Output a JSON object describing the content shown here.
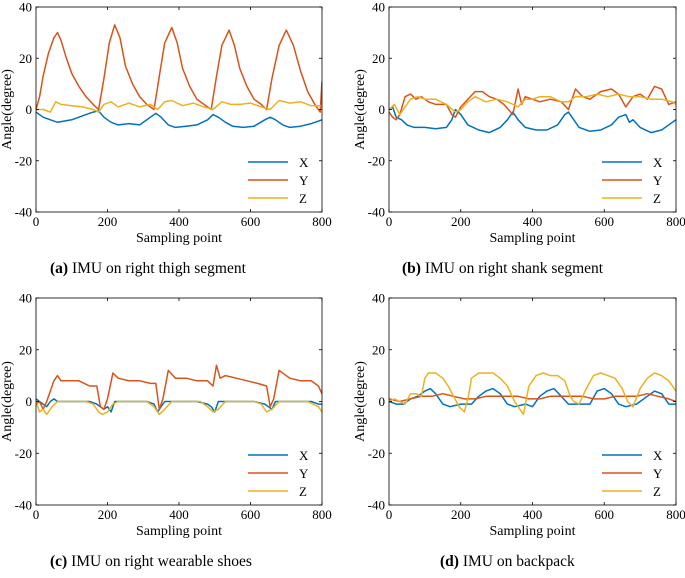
{
  "chart_data": [
    {
      "type": "line",
      "id": "a",
      "caption_label": "(a)",
      "caption_text": "IMU on right thigh segment",
      "xlabel": "Sampling point",
      "ylabel": "Angle(degree)",
      "xlim": [
        0,
        800
      ],
      "ylim": [
        -40,
        40
      ],
      "xticks": [
        "0",
        "200",
        "400",
        "600",
        "800"
      ],
      "yticks": [
        "40",
        "20",
        "0",
        "-20",
        "-40"
      ],
      "legend_position": "lower-right",
      "series": [
        {
          "name": "X",
          "color": "#0072BD",
          "x": [
            0,
            20,
            40,
            60,
            80,
            100,
            120,
            140,
            160,
            175,
            190,
            210,
            230,
            260,
            290,
            320,
            335,
            350,
            370,
            390,
            420,
            450,
            480,
            495,
            510,
            530,
            550,
            580,
            610,
            640,
            655,
            670,
            690,
            710,
            740,
            770,
            800
          ],
          "values": [
            -1,
            -3,
            -4,
            -5,
            -4.5,
            -4,
            -3,
            -2,
            -1,
            -0.5,
            -3,
            -5,
            -6,
            -5.5,
            -6,
            -3,
            -1.5,
            -3,
            -6,
            -7,
            -6.5,
            -6,
            -4,
            -2,
            -3,
            -5,
            -6.5,
            -7,
            -6.5,
            -4,
            -3,
            -4,
            -6,
            -7,
            -6.5,
            -5.5,
            -4
          ]
        },
        {
          "name": "Y",
          "color": "#D95319",
          "x": [
            0,
            10,
            20,
            35,
            50,
            60,
            70,
            85,
            100,
            120,
            140,
            160,
            175,
            190,
            205,
            220,
            235,
            250,
            270,
            290,
            310,
            330,
            345,
            360,
            380,
            395,
            410,
            430,
            450,
            470,
            490,
            505,
            520,
            540,
            555,
            570,
            590,
            610,
            630,
            645,
            660,
            680,
            700,
            720,
            740,
            760,
            780,
            795,
            800
          ],
          "values": [
            0,
            5,
            13,
            22,
            28,
            30,
            27,
            20,
            14,
            9,
            5,
            2,
            0,
            12,
            26,
            33,
            28,
            17,
            10,
            5,
            2,
            0,
            13,
            26,
            32,
            26,
            16,
            9,
            4,
            2,
            0,
            13,
            25,
            31,
            25,
            16,
            9,
            4,
            2,
            0,
            12,
            25,
            31,
            25,
            15,
            7,
            2,
            -1,
            11
          ]
        },
        {
          "name": "Z",
          "color": "#EDB120",
          "x": [
            0,
            20,
            40,
            55,
            70,
            100,
            130,
            160,
            175,
            190,
            210,
            230,
            260,
            290,
            320,
            340,
            360,
            380,
            410,
            440,
            470,
            495,
            520,
            545,
            570,
            600,
            630,
            655,
            680,
            710,
            740,
            770,
            800
          ],
          "values": [
            0,
            0,
            -1,
            3,
            2,
            1.5,
            1,
            0,
            -1,
            2,
            3,
            1,
            2.5,
            1,
            2,
            0,
            3,
            3.5,
            1.5,
            2.5,
            1,
            0,
            3,
            2,
            2,
            2.5,
            1,
            0,
            3.5,
            2.5,
            3,
            1.5,
            1.5
          ]
        }
      ]
    },
    {
      "type": "line",
      "id": "b",
      "caption_label": "(b)",
      "caption_text": "IMU on right shank segment",
      "xlabel": "Sampling point",
      "ylabel": "Angle(degree)",
      "xlim": [
        0,
        800
      ],
      "ylim": [
        -40,
        40
      ],
      "xticks": [
        "0",
        "200",
        "400",
        "600",
        "800"
      ],
      "yticks": [
        "40",
        "20",
        "0",
        "-20",
        "-40"
      ],
      "legend_position": "lower-right",
      "series": [
        {
          "name": "X",
          "color": "#0072BD",
          "x": [
            0,
            10,
            20,
            35,
            50,
            70,
            100,
            130,
            160,
            175,
            185,
            200,
            220,
            250,
            280,
            310,
            330,
            345,
            360,
            380,
            410,
            440,
            470,
            490,
            500,
            510,
            530,
            560,
            590,
            620,
            640,
            660,
            670,
            680,
            700,
            730,
            760,
            790,
            800
          ],
          "values": [
            0,
            1,
            -3,
            -4,
            -6,
            -7,
            -7,
            -7.5,
            -7,
            -4,
            0,
            -2,
            -6,
            -8,
            -9,
            -7,
            -4,
            -1,
            -4,
            -7,
            -8,
            -8,
            -6,
            -2,
            -1,
            -3,
            -7,
            -8.5,
            -8,
            -6,
            -3,
            -2,
            -5,
            -4,
            -7,
            -9,
            -8,
            -5,
            -4
          ]
        },
        {
          "name": "Y",
          "color": "#D95319",
          "x": [
            0,
            10,
            20,
            30,
            45,
            60,
            75,
            90,
            110,
            130,
            160,
            175,
            185,
            200,
            220,
            240,
            260,
            280,
            300,
            320,
            345,
            360,
            370,
            380,
            400,
            420,
            450,
            480,
            500,
            520,
            540,
            560,
            590,
            620,
            640,
            660,
            680,
            700,
            720,
            740,
            760,
            780,
            800
          ],
          "values": [
            -1,
            -3,
            -4,
            -2,
            5,
            6,
            4,
            5,
            3,
            2,
            2,
            -2,
            -3,
            1,
            4,
            7,
            7,
            5,
            4,
            2,
            -2,
            8,
            2,
            5,
            4,
            3,
            4,
            3,
            0,
            8,
            5,
            4,
            7,
            8,
            6,
            1,
            5,
            6,
            4,
            9,
            8,
            2,
            3
          ]
        },
        {
          "name": "Z",
          "color": "#EDB120",
          "x": [
            0,
            15,
            30,
            45,
            60,
            80,
            100,
            130,
            160,
            185,
            200,
            220,
            240,
            270,
            300,
            330,
            360,
            380,
            400,
            420,
            450,
            480,
            500,
            520,
            550,
            580,
            610,
            640,
            670,
            700,
            730,
            760,
            790,
            800
          ],
          "values": [
            0,
            2,
            -2,
            1,
            4,
            5,
            4,
            4,
            2,
            -1,
            0,
            3,
            5,
            3,
            4,
            3,
            1,
            4,
            4,
            5,
            5,
            3,
            3,
            5,
            5,
            6,
            5,
            6,
            5,
            5,
            4,
            4,
            3,
            2
          ]
        }
      ]
    },
    {
      "type": "line",
      "id": "c",
      "caption_label": "(c)",
      "caption_text": "IMU on right wearable shoes",
      "xlabel": "Sampling point",
      "ylabel": "Angle(degree)",
      "xlim": [
        0,
        800
      ],
      "ylim": [
        -40,
        40
      ],
      "xticks": [
        "0",
        "200",
        "400",
        "600",
        "800"
      ],
      "yticks": [
        "40",
        "20",
        "0",
        "-20",
        "-40"
      ],
      "legend_position": "lower-right",
      "series": [
        {
          "name": "X",
          "color": "#0072BD",
          "x": [
            0,
            20,
            30,
            40,
            50,
            60,
            100,
            150,
            170,
            190,
            200,
            210,
            220,
            260,
            310,
            330,
            340,
            350,
            360,
            400,
            450,
            480,
            490,
            500,
            510,
            520,
            560,
            610,
            640,
            650,
            660,
            670,
            680,
            720,
            770,
            790,
            800
          ],
          "values": [
            1,
            -1,
            -2,
            0,
            1,
            0,
            0,
            0,
            -1,
            -3,
            -2,
            -4,
            0,
            0,
            0,
            -1,
            -4,
            -2,
            0,
            0,
            0,
            -1,
            -2,
            -4,
            0,
            0,
            0,
            0,
            -1,
            -2,
            -3,
            0,
            0,
            0,
            0,
            -1,
            -1
          ]
        },
        {
          "name": "Y",
          "color": "#D95319",
          "x": [
            0,
            10,
            20,
            30,
            50,
            60,
            70,
            90,
            120,
            150,
            170,
            180,
            190,
            200,
            215,
            230,
            260,
            290,
            320,
            335,
            345,
            355,
            370,
            390,
            420,
            450,
            480,
            495,
            505,
            515,
            530,
            560,
            590,
            620,
            645,
            655,
            665,
            680,
            710,
            740,
            770,
            790,
            800
          ],
          "values": [
            -1,
            0,
            -3,
            0,
            8,
            10,
            8,
            8,
            8,
            6,
            6,
            -2,
            -3,
            1,
            11,
            9,
            8,
            8,
            7,
            7,
            -3,
            1,
            12,
            9,
            9,
            8,
            8,
            6,
            14,
            9,
            10,
            9,
            8,
            7,
            6,
            -2,
            1,
            12,
            9,
            8,
            8,
            6,
            3
          ]
        },
        {
          "name": "Z",
          "color": "#EDB120",
          "x": [
            0,
            10,
            20,
            30,
            45,
            60,
            100,
            140,
            160,
            175,
            185,
            200,
            215,
            230,
            270,
            310,
            330,
            345,
            360,
            380,
            420,
            460,
            480,
            495,
            510,
            530,
            570,
            610,
            630,
            645,
            660,
            680,
            720,
            760,
            790,
            800
          ],
          "values": [
            0,
            -4,
            -3,
            -5,
            -2,
            0,
            0,
            0,
            -1,
            -4,
            -5,
            -4,
            -1,
            0,
            0,
            0,
            -2,
            -5,
            -3,
            0,
            0,
            0,
            -2,
            -4,
            -3,
            0,
            0,
            0,
            -1,
            -4,
            -3,
            0,
            0,
            0,
            -2,
            -4
          ]
        }
      ]
    },
    {
      "type": "line",
      "id": "d",
      "caption_label": "(d)",
      "caption_text": "IMU on backpack",
      "xlabel": "Sampling point",
      "ylabel": "Angle(degree)",
      "xlim": [
        0,
        800
      ],
      "ylim": [
        -40,
        40
      ],
      "xticks": [
        "0",
        "200",
        "400",
        "600",
        "800"
      ],
      "yticks": [
        "40",
        "20",
        "0",
        "-20",
        "-40"
      ],
      "legend_position": "lower-right",
      "series": [
        {
          "name": "X",
          "color": "#0072BD",
          "x": [
            0,
            20,
            40,
            60,
            80,
            100,
            115,
            130,
            150,
            170,
            200,
            230,
            250,
            270,
            290,
            310,
            330,
            350,
            380,
            400,
            420,
            440,
            460,
            480,
            500,
            530,
            560,
            580,
            600,
            620,
            640,
            660,
            690,
            720,
            740,
            760,
            780,
            800
          ],
          "values": [
            0,
            -1,
            -1,
            1,
            2,
            4,
            5,
            3,
            -1,
            -2,
            -1,
            -1,
            2,
            4,
            5,
            3,
            -1,
            -2,
            -1,
            -2,
            2,
            4,
            5,
            2,
            -1,
            -1,
            -1,
            4,
            5,
            3,
            -1,
            -2,
            -1,
            2,
            4,
            3,
            -1,
            -1
          ]
        },
        {
          "name": "Y",
          "color": "#D95319",
          "x": [
            0,
            30,
            60,
            90,
            120,
            150,
            180,
            210,
            240,
            270,
            300,
            330,
            360,
            390,
            420,
            450,
            480,
            510,
            540,
            570,
            600,
            630,
            660,
            690,
            720,
            750,
            780,
            800
          ],
          "values": [
            1,
            0,
            1,
            2,
            2,
            3,
            2,
            1,
            1,
            2,
            2,
            2,
            2,
            1,
            1,
            2,
            2,
            2,
            2,
            1,
            1,
            2,
            2,
            2,
            3,
            2,
            1,
            0
          ]
        },
        {
          "name": "Z",
          "color": "#EDB120",
          "x": [
            0,
            15,
            30,
            45,
            60,
            75,
            90,
            100,
            110,
            130,
            150,
            165,
            180,
            195,
            210,
            220,
            230,
            250,
            270,
            290,
            310,
            330,
            350,
            365,
            375,
            390,
            410,
            430,
            450,
            470,
            490,
            505,
            515,
            530,
            550,
            570,
            590,
            610,
            630,
            650,
            665,
            680,
            700,
            720,
            740,
            760,
            780,
            800
          ],
          "values": [
            0,
            1,
            0,
            -1,
            3,
            3,
            2,
            9,
            11,
            11,
            9,
            6,
            2,
            -2,
            -4,
            1,
            9,
            11,
            11,
            11,
            9,
            6,
            0,
            -3,
            -5,
            6,
            10,
            11,
            10,
            10,
            8,
            2,
            0,
            -1,
            5,
            10,
            11,
            10,
            9,
            5,
            0,
            -2,
            5,
            9,
            11,
            10,
            8,
            4
          ]
        }
      ]
    }
  ]
}
